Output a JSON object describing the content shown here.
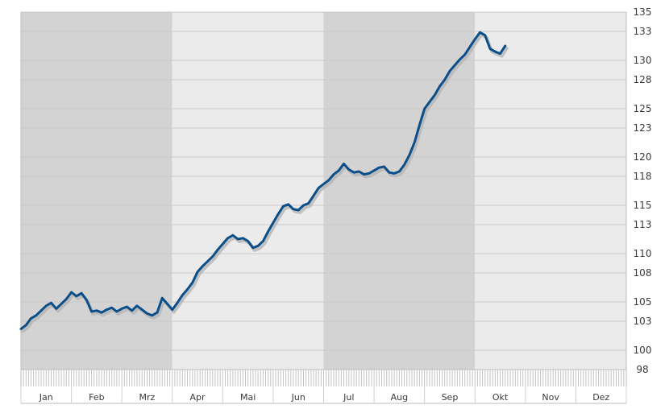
{
  "chart_data": {
    "type": "line",
    "title": "",
    "xlabel": "",
    "ylabel": "",
    "grid": true,
    "legend": "none",
    "y_axis_position": "right",
    "ylim": [
      98,
      135
    ],
    "y_ticks": [
      "98",
      "100",
      "103",
      "105",
      "108",
      "110",
      "113",
      "115",
      "118",
      "120",
      "123",
      "125",
      "128",
      "130",
      "133",
      "135"
    ],
    "x_tick_labels": [
      "Jan",
      "Feb",
      "Mrz",
      "Apr",
      "Mai",
      "Jun",
      "Jul",
      "Aug",
      "Sep",
      "Okt",
      "Nov",
      "Dez"
    ],
    "shaded_bands": [
      {
        "from": "Jan",
        "to": "Mrz",
        "shade": "dark"
      },
      {
        "from": "Apr",
        "to": "Jun",
        "shade": "light"
      },
      {
        "from": "Jul",
        "to": "Sep",
        "shade": "dark"
      },
      {
        "from": "Okt",
        "to": "Dez",
        "shade": "light"
      }
    ],
    "colors": {
      "line": "#0b4f8a",
      "shadow": "#b5b5b5",
      "band_dark": "#d3d3d3",
      "band_light": "#ebebeb",
      "grid": "#c8c8c8"
    },
    "series": [
      {
        "x": [
          0,
          0.1,
          0.2,
          0.3,
          0.4,
          0.5,
          0.6,
          0.7,
          0.8,
          0.9,
          1,
          1.1,
          1.2,
          1.3,
          1.4,
          1.5,
          1.6,
          1.7,
          1.8,
          1.9,
          2,
          2.1,
          2.2,
          2.3,
          2.4,
          2.5,
          2.6,
          2.7,
          2.8,
          2.9,
          3,
          3.1,
          3.2,
          3.3,
          3.4,
          3.5,
          3.6,
          3.7,
          3.8,
          3.9,
          4,
          4.1,
          4.2,
          4.3,
          4.4,
          4.5,
          4.6,
          4.7,
          4.8,
          4.9,
          5,
          5.1,
          5.2,
          5.3,
          5.4,
          5.5,
          5.6,
          5.7,
          5.8,
          5.9,
          6,
          6.1,
          6.2,
          6.3,
          6.4,
          6.5,
          6.6,
          6.7,
          6.8,
          6.9,
          7,
          7.1,
          7.2,
          7.3,
          7.4,
          7.5,
          7.6,
          7.7,
          7.8,
          7.9,
          8,
          8.1,
          8.2,
          8.3,
          8.4,
          8.5,
          8.6,
          8.7,
          8.8,
          8.9,
          9,
          9.1,
          9.2,
          9.3,
          9.4,
          9.5,
          9.6,
          9.7,
          9.8,
          9.9,
          10,
          10.1,
          10.2,
          10.3,
          10.4,
          10.5,
          10.6,
          10.7,
          10.8,
          10.9,
          11,
          11.1,
          11.2,
          11.3,
          11.4,
          11.5,
          11.6,
          11.7,
          11.8,
          11.9,
          12
        ],
        "values": [
          102.2,
          102.6,
          103.3,
          103.6,
          104.1,
          104.6,
          104.9,
          104.3,
          104.8,
          105.3,
          106.0,
          105.6,
          105.9,
          105.2,
          104.0,
          104.1,
          103.9,
          104.2,
          104.4,
          104.0,
          104.3,
          104.5,
          104.1,
          104.6,
          104.2,
          103.8,
          103.6,
          103.9,
          105.4,
          104.8,
          104.2,
          104.9,
          105.7,
          106.3,
          107.0,
          108.1,
          108.7,
          109.2,
          109.7,
          110.4,
          111.0,
          111.6,
          111.9,
          111.5,
          111.6,
          111.3,
          110.6,
          110.8,
          111.3,
          112.3,
          113.2,
          114.1,
          114.9,
          115.1,
          114.6,
          114.5,
          115.0,
          115.2,
          116.0,
          116.8,
          117.2,
          117.6,
          118.2,
          118.6,
          119.3,
          118.7,
          118.4,
          118.5,
          118.2,
          118.3,
          118.6,
          118.9,
          119.0,
          118.4,
          118.3,
          118.5,
          119.2,
          120.2,
          121.5,
          123.3,
          125.0,
          125.7,
          126.4,
          127.3,
          128.0,
          128.9,
          129.5,
          130.1,
          130.6,
          131.4,
          132.2,
          132.9,
          132.6,
          131.2,
          130.9,
          130.7,
          131.5,
          null,
          null,
          null,
          null,
          null,
          null,
          null,
          null,
          null,
          null,
          null,
          null,
          null,
          null,
          null,
          null,
          null,
          null,
          null,
          null,
          null,
          null,
          null,
          null
        ]
      }
    ]
  }
}
